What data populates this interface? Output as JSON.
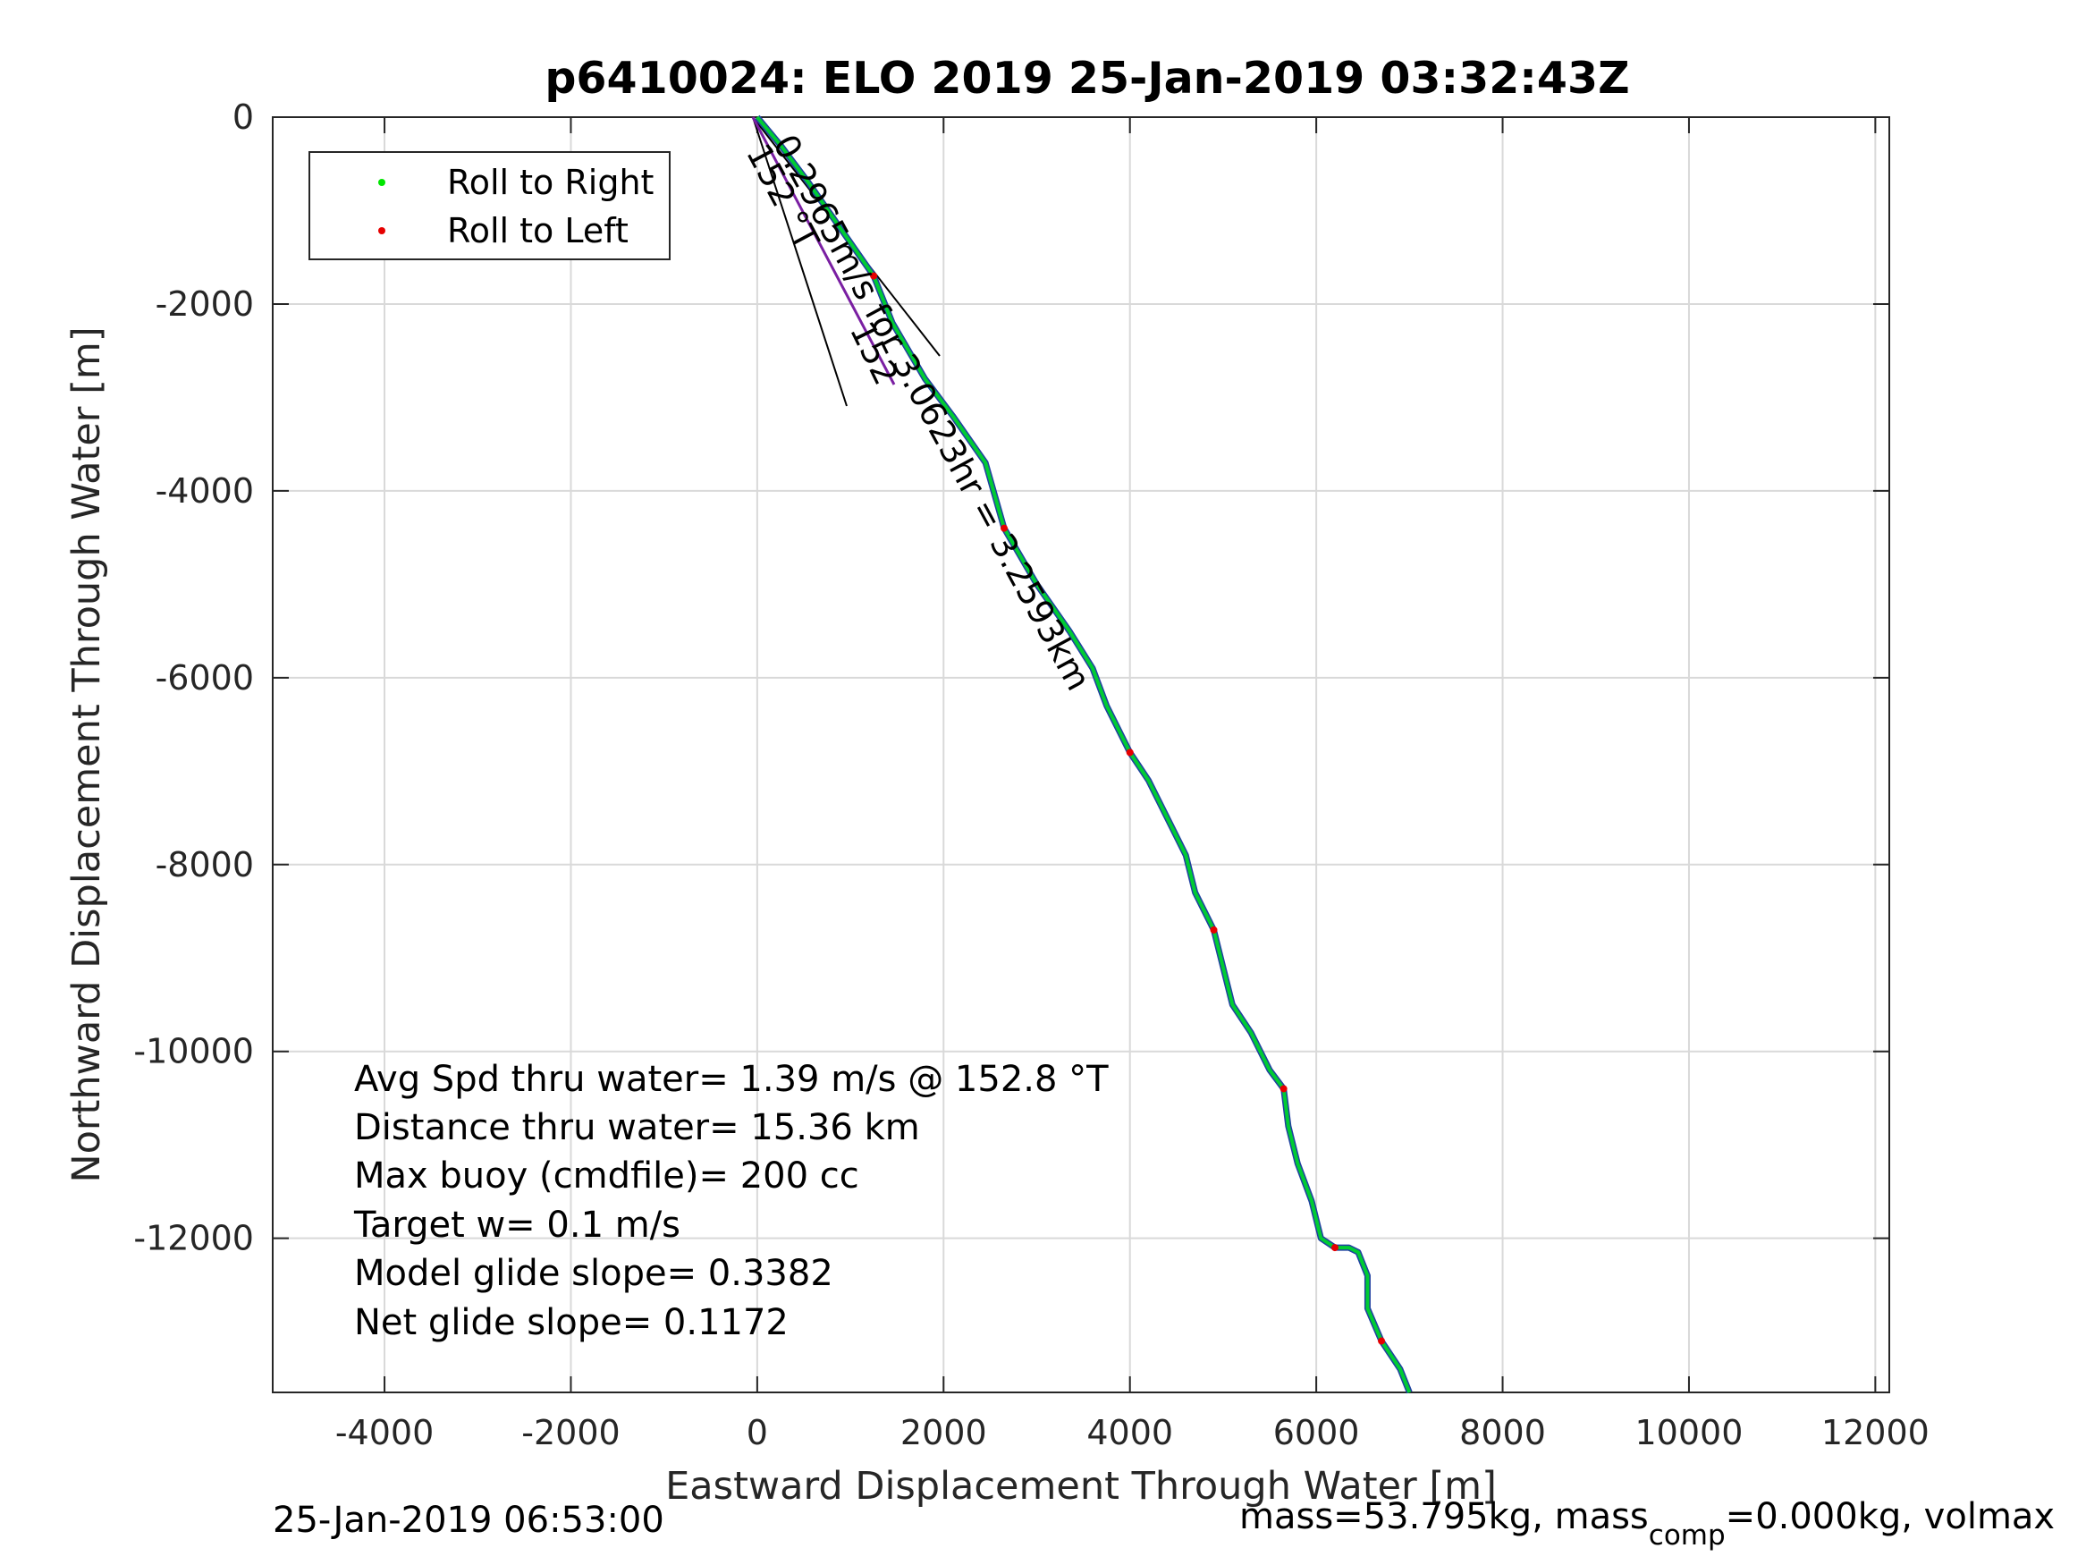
{
  "chart_data": {
    "type": "line",
    "title": "p6410024: ELO 2019 25-Jan-2019 03:32:43Z",
    "xlabel": "Eastward Displacement Through Water [m]",
    "ylabel": "Northward Displacement Through Water [m]",
    "xlim": [
      -5200,
      12150
    ],
    "ylim": [
      -13650,
      0
    ],
    "xticks": [
      -4000,
      -2000,
      0,
      2000,
      4000,
      6000,
      8000,
      10000,
      12000
    ],
    "yticks": [
      0,
      -2000,
      -4000,
      -6000,
      -8000,
      -10000,
      -12000
    ],
    "xtick_labels": [
      "-4000",
      "-2000",
      "0",
      "2000",
      "4000",
      "6000",
      "8000",
      "10000",
      "12000"
    ],
    "ytick_labels": [
      "0",
      "-2000",
      "-4000",
      "-6000",
      "-8000",
      "-10000",
      "-12000"
    ],
    "grid": true,
    "legend": {
      "placement": "top-left",
      "entries": [
        {
          "label": "Roll to Right",
          "color": "#00e600"
        },
        {
          "label": "Roll to Left",
          "color": "#e60000"
        }
      ]
    },
    "series": [
      {
        "color": "#00cc33",
        "x": [
          0,
          250,
          550,
          900,
          1250,
          1450,
          1800,
          2100,
          2450,
          2650,
          3000,
          3350,
          3600,
          3750,
          4000,
          4200,
          4350,
          4600,
          4700,
          4900,
          5000,
          5100,
          5300,
          5500,
          5650,
          5700,
          5800,
          5950,
          6050,
          6200,
          6350,
          6450,
          6550,
          6550,
          6700,
          6900,
          7000
        ],
        "y": [
          0,
          -300,
          -700,
          -1200,
          -1700,
          -2200,
          -2800,
          -3200,
          -3700,
          -4400,
          -5000,
          -5500,
          -5900,
          -6300,
          -6800,
          -7100,
          -7400,
          -7900,
          -8300,
          -8700,
          -9100,
          -9500,
          -9800,
          -10200,
          -10400,
          -10800,
          -11200,
          -11600,
          -12000,
          -12100,
          -12100,
          -12150,
          -12400,
          -12750,
          -13100,
          -13400,
          -13650
        ]
      }
    ],
    "annotations": {
      "heading_label": "152 °T",
      "segment_label": "0.2965m/s for 3.0623hr = 3.2593km",
      "inner_label": "152"
    }
  },
  "stats": {
    "lines": [
      "Avg Spd thru water=  1.39 m/s @ 152.8 °T",
      "Distance thru water= 15.36 km",
      "Max buoy (cmdfile)= 200 cc",
      "Target w= 0.1 m/s",
      "Model glide slope= 0.3382",
      "Net glide slope= 0.1172"
    ]
  },
  "footer": {
    "timestamp": "25-Jan-2019 06:53:00",
    "mass_text_pre": "mass=53.795kg, mass",
    "mass_sub": "comp",
    "mass_text_post": "=0.000kg, volmax"
  },
  "colors": {
    "track": "#00cc33",
    "roll_left": "#e60000",
    "roll_right": "#00e600",
    "grid": "#d9d9d9"
  }
}
